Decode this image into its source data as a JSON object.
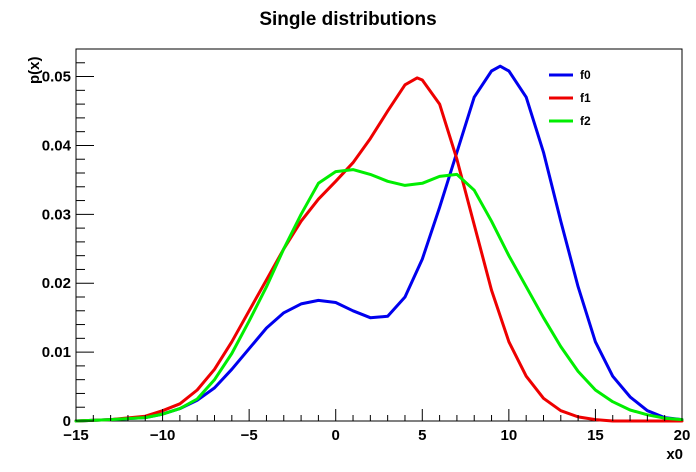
{
  "chart_data": {
    "type": "line",
    "title": "Single distributions",
    "xlabel": "x0",
    "ylabel": "p(x)",
    "xlim": [
      -15,
      20
    ],
    "ylim": [
      0,
      0.054
    ],
    "xticks": [
      -15,
      -10,
      -5,
      0,
      5,
      10,
      15,
      20
    ],
    "xtick_labels": [
      "−15",
      "−10",
      "−5",
      "0",
      "5",
      "10",
      "15",
      "20"
    ],
    "yticks": [
      0,
      0.01,
      0.02,
      0.03,
      0.04,
      0.05
    ],
    "ytick_labels": [
      "0",
      "0.01",
      "0.02",
      "0.03",
      "0.04",
      "0.05"
    ],
    "grid": false,
    "legend_position": "top-right",
    "series": [
      {
        "name": "f0",
        "color": "#0000ee",
        "points": [
          [
            -15,
            0
          ],
          [
            -13,
            0.0002
          ],
          [
            -11,
            0.0005
          ],
          [
            -10,
            0.001
          ],
          [
            -9,
            0.0018
          ],
          [
            -8,
            0.003
          ],
          [
            -7,
            0.0048
          ],
          [
            -6,
            0.0075
          ],
          [
            -5,
            0.0105
          ],
          [
            -4,
            0.0135
          ],
          [
            -3,
            0.0157
          ],
          [
            -2,
            0.017
          ],
          [
            -1,
            0.0175
          ],
          [
            0,
            0.0172
          ],
          [
            1,
            0.016
          ],
          [
            2,
            0.015
          ],
          [
            3,
            0.0152
          ],
          [
            4,
            0.018
          ],
          [
            5,
            0.0235
          ],
          [
            6,
            0.031
          ],
          [
            7,
            0.039
          ],
          [
            8,
            0.047
          ],
          [
            9,
            0.0508
          ],
          [
            9.5,
            0.0515
          ],
          [
            10,
            0.0508
          ],
          [
            11,
            0.047
          ],
          [
            12,
            0.039
          ],
          [
            13,
            0.029
          ],
          [
            14,
            0.0195
          ],
          [
            15,
            0.0115
          ],
          [
            16,
            0.0065
          ],
          [
            17,
            0.0035
          ],
          [
            18,
            0.0015
          ],
          [
            19,
            0.0005
          ],
          [
            20,
            0.0002
          ]
        ]
      },
      {
        "name": "f1",
        "color": "#ee0000",
        "points": [
          [
            -15,
            0
          ],
          [
            -13,
            0.0002
          ],
          [
            -11,
            0.0007
          ],
          [
            -10,
            0.0015
          ],
          [
            -9,
            0.0025
          ],
          [
            -8,
            0.0045
          ],
          [
            -7,
            0.0075
          ],
          [
            -6,
            0.0115
          ],
          [
            -5,
            0.016
          ],
          [
            -4,
            0.0205
          ],
          [
            -3,
            0.025
          ],
          [
            -2,
            0.029
          ],
          [
            -1,
            0.0322
          ],
          [
            0,
            0.0348
          ],
          [
            1,
            0.0375
          ],
          [
            2,
            0.041
          ],
          [
            3,
            0.045
          ],
          [
            4,
            0.0488
          ],
          [
            4.7,
            0.0498
          ],
          [
            5,
            0.0495
          ],
          [
            6,
            0.046
          ],
          [
            7,
            0.038
          ],
          [
            8,
            0.0285
          ],
          [
            9,
            0.019
          ],
          [
            10,
            0.0115
          ],
          [
            11,
            0.0065
          ],
          [
            12,
            0.0033
          ],
          [
            13,
            0.0015
          ],
          [
            14,
            0.0006
          ],
          [
            15,
            0.0002
          ],
          [
            16,
            0
          ],
          [
            20,
            0
          ]
        ]
      },
      {
        "name": "f2",
        "color": "#00ee00",
        "points": [
          [
            -15,
            0
          ],
          [
            -13,
            0.0002
          ],
          [
            -11,
            0.0005
          ],
          [
            -10,
            0.001
          ],
          [
            -9,
            0.0018
          ],
          [
            -8,
            0.0032
          ],
          [
            -7,
            0.006
          ],
          [
            -6,
            0.0098
          ],
          [
            -5,
            0.0145
          ],
          [
            -4,
            0.0195
          ],
          [
            -3,
            0.025
          ],
          [
            -2,
            0.03
          ],
          [
            -1,
            0.0345
          ],
          [
            0,
            0.0362
          ],
          [
            1,
            0.0365
          ],
          [
            2,
            0.0358
          ],
          [
            3,
            0.0348
          ],
          [
            4,
            0.0342
          ],
          [
            5,
            0.0345
          ],
          [
            6,
            0.0355
          ],
          [
            7,
            0.0358
          ],
          [
            8,
            0.0335
          ],
          [
            9,
            0.029
          ],
          [
            10,
            0.024
          ],
          [
            11,
            0.0195
          ],
          [
            12,
            0.015
          ],
          [
            13,
            0.0108
          ],
          [
            14,
            0.0072
          ],
          [
            15,
            0.0045
          ],
          [
            16,
            0.0028
          ],
          [
            17,
            0.0016
          ],
          [
            18,
            0.0009
          ],
          [
            19,
            0.0004
          ],
          [
            20,
            0.0002
          ]
        ]
      }
    ]
  }
}
